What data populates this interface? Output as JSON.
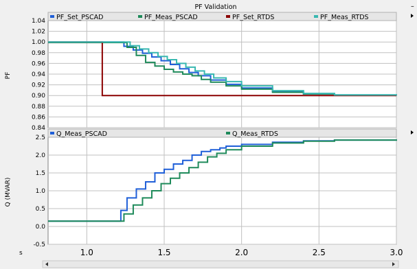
{
  "window": {
    "title": "PF Validation"
  },
  "colors": {
    "pf_set_pscad": "#1f5fd8",
    "pf_meas_pscad": "#1e8a5a",
    "pf_set_rtds": "#8b0000",
    "pf_meas_rtds": "#38b8b0",
    "q_meas_pscad": "#1f5fd8",
    "q_meas_rtds": "#1e8a5a"
  },
  "x_axis": {
    "unit_label": "s",
    "ticks": [
      "1.0",
      "1.5",
      "2.0",
      "2.5",
      "3.0"
    ],
    "range": [
      0.75,
      3.0
    ]
  },
  "chart_data": [
    {
      "type": "line",
      "ylabel": "PF",
      "ylim": [
        0.84,
        1.04
      ],
      "yticks": [
        "1.04",
        "1.02",
        "1.00",
        "0.98",
        "0.96",
        "0.94",
        "0.92",
        "0.90",
        "0.88",
        "0.86",
        "0.84"
      ],
      "grid": true,
      "legend": "top",
      "series": [
        {
          "name": "PF_Set_PSCAD",
          "color": "#1f5fd8",
          "x": [
            0.75,
            1.2,
            1.24,
            1.3,
            1.36,
            1.42,
            1.48,
            1.54,
            1.6,
            1.66,
            1.72,
            1.8,
            1.9,
            2.0,
            2.2,
            2.4,
            2.6,
            3.0
          ],
          "y": [
            1.0,
            1.0,
            0.992,
            0.985,
            0.979,
            0.972,
            0.965,
            0.958,
            0.95,
            0.943,
            0.937,
            0.929,
            0.921,
            0.914,
            0.907,
            0.903,
            0.901,
            0.9
          ]
        },
        {
          "name": "PF_Meas_PSCAD",
          "color": "#1e8a5a",
          "x": [
            0.75,
            1.2,
            1.26,
            1.32,
            1.38,
            1.44,
            1.5,
            1.56,
            1.62,
            1.68,
            1.74,
            1.8,
            1.9,
            2.0,
            2.2,
            2.4,
            2.6,
            3.0
          ],
          "y": [
            0.999,
            0.999,
            0.99,
            0.975,
            0.962,
            0.955,
            0.949,
            0.944,
            0.94,
            0.937,
            0.93,
            0.925,
            0.918,
            0.912,
            0.906,
            0.903,
            0.901,
            0.9
          ]
        },
        {
          "name": "PF_Set_RTDS",
          "color": "#8b0000",
          "x": [
            0.75,
            1.1,
            1.1,
            3.0
          ],
          "y": [
            1.0,
            1.0,
            0.9,
            0.9
          ]
        },
        {
          "name": "PF_Meas_RTDS",
          "color": "#38b8b0",
          "x": [
            0.75,
            1.2,
            1.28,
            1.34,
            1.4,
            1.46,
            1.52,
            1.58,
            1.64,
            1.7,
            1.76,
            1.82,
            1.9,
            2.0,
            2.2,
            2.4,
            2.6,
            3.0
          ],
          "y": [
            1.0,
            1.0,
            0.993,
            0.987,
            0.98,
            0.973,
            0.967,
            0.96,
            0.953,
            0.946,
            0.94,
            0.933,
            0.926,
            0.918,
            0.909,
            0.904,
            0.901,
            0.9
          ]
        }
      ]
    },
    {
      "type": "line",
      "ylabel": "Q (MVAR)",
      "ylim": [
        -0.5,
        2.5
      ],
      "yticks": [
        "2.5",
        "2.0",
        "1.5",
        "1.0",
        "0.5",
        "0.0",
        "-0.5"
      ],
      "grid": true,
      "legend": "top",
      "series": [
        {
          "name": "Q_Meas_PSCAD",
          "color": "#1f5fd8",
          "x": [
            0.75,
            1.2,
            1.22,
            1.26,
            1.32,
            1.38,
            1.44,
            1.5,
            1.56,
            1.62,
            1.68,
            1.74,
            1.8,
            1.86,
            1.9,
            2.0,
            2.2,
            2.4,
            2.6,
            3.0
          ],
          "y": [
            0.15,
            0.15,
            0.45,
            0.8,
            1.05,
            1.25,
            1.5,
            1.6,
            1.75,
            1.85,
            2.0,
            2.1,
            2.15,
            2.2,
            2.25,
            2.3,
            2.36,
            2.4,
            2.42,
            2.44
          ]
        },
        {
          "name": "Q_Meas_RTDS",
          "color": "#1e8a5a",
          "x": [
            0.75,
            1.22,
            1.24,
            1.3,
            1.36,
            1.42,
            1.48,
            1.54,
            1.6,
            1.66,
            1.72,
            1.78,
            1.84,
            1.9,
            2.0,
            2.2,
            2.4,
            2.6,
            3.0
          ],
          "y": [
            0.15,
            0.15,
            0.35,
            0.6,
            0.8,
            1.0,
            1.2,
            1.35,
            1.5,
            1.65,
            1.8,
            1.95,
            2.05,
            2.15,
            2.25,
            2.34,
            2.39,
            2.42,
            2.44
          ]
        }
      ]
    }
  ]
}
